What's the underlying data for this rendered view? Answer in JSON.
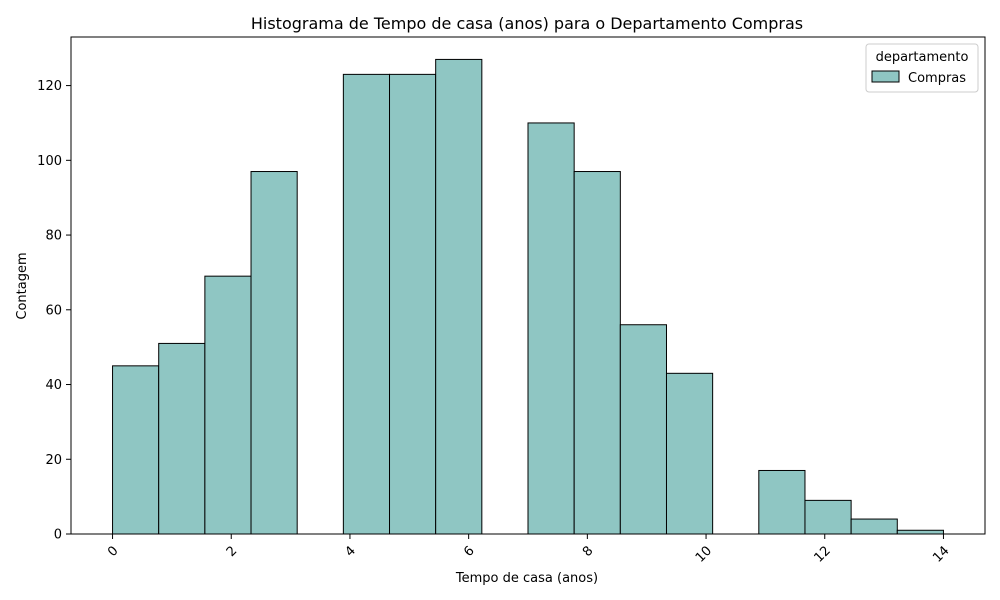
{
  "chart_data": {
    "type": "bar",
    "title": "Histograma de Tempo de casa (anos) para o Departamento Compras",
    "xlabel": "Tempo de casa (anos)",
    "ylabel": "Contagem",
    "xlim": [
      -0.7,
      14.7
    ],
    "ylim": [
      0,
      133
    ],
    "x_ticks": [
      0,
      2,
      4,
      6,
      8,
      10,
      12,
      14
    ],
    "y_ticks": [
      0,
      20,
      40,
      60,
      80,
      100,
      120
    ],
    "grid": false,
    "bin_width": 0.7778,
    "bins": [
      {
        "start": 0.0,
        "count": 45
      },
      {
        "start": 0.7778,
        "count": 51
      },
      {
        "start": 1.5556,
        "count": 69
      },
      {
        "start": 2.3333,
        "count": 97
      },
      {
        "start": 3.1111,
        "count": 0
      },
      {
        "start": 3.8889,
        "count": 123
      },
      {
        "start": 4.6667,
        "count": 123
      },
      {
        "start": 5.4444,
        "count": 127
      },
      {
        "start": 6.2222,
        "count": 0
      },
      {
        "start": 7.0,
        "count": 110
      },
      {
        "start": 7.7778,
        "count": 97
      },
      {
        "start": 8.5556,
        "count": 56
      },
      {
        "start": 9.3333,
        "count": 43
      },
      {
        "start": 10.1111,
        "count": 0
      },
      {
        "start": 10.8889,
        "count": 17
      },
      {
        "start": 11.6667,
        "count": 9
      },
      {
        "start": 12.4444,
        "count": 4
      },
      {
        "start": 13.2222,
        "count": 1
      }
    ],
    "legend": {
      "title": "departamento",
      "placement": "top-right",
      "entries": [
        {
          "name": "Compras",
          "color": "#8fc6c3"
        }
      ]
    },
    "colors": {
      "bar_fill": "#8fc6c3",
      "bar_edge": "#000000"
    }
  }
}
